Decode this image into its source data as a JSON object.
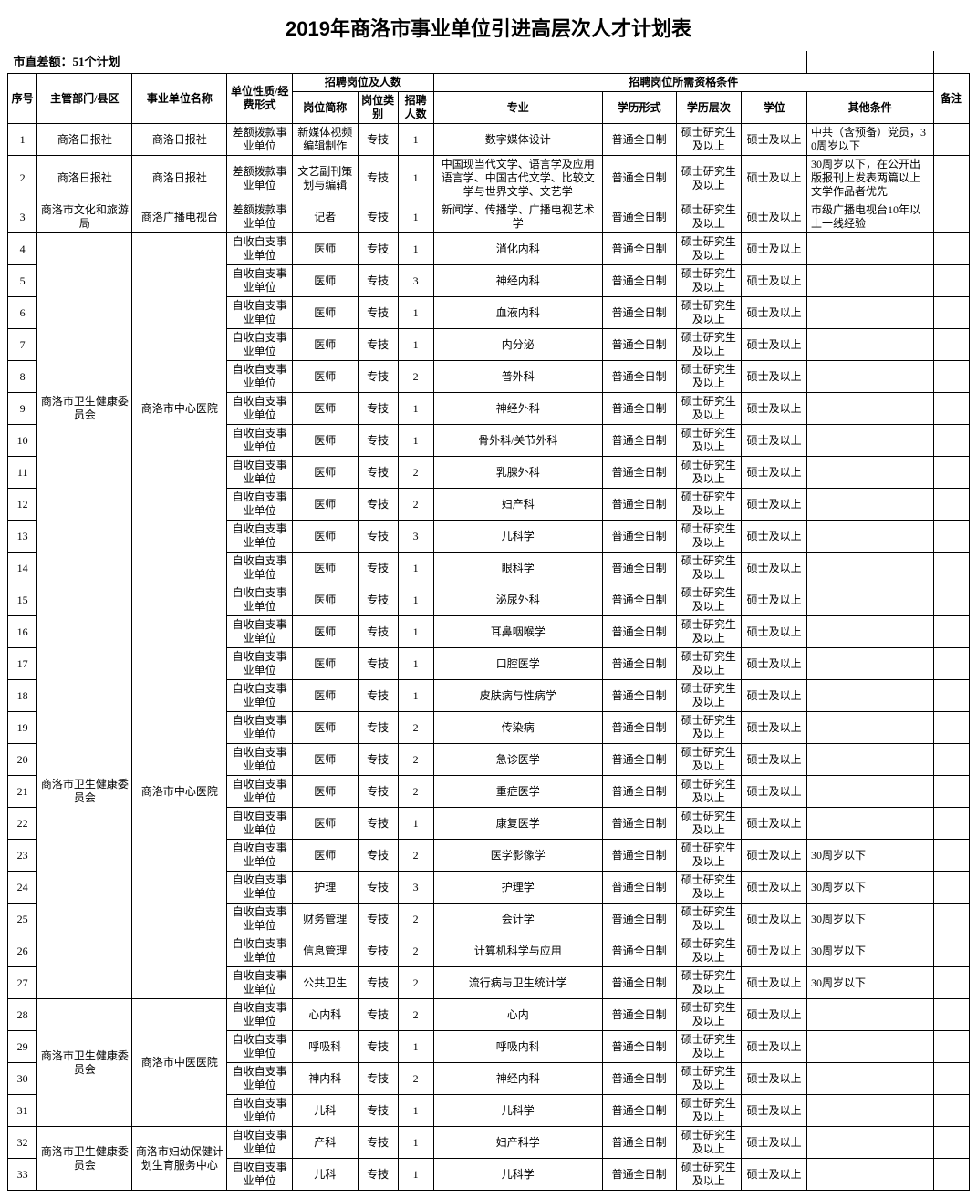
{
  "title": "2019年商洛市事业单位引进高层次人才计划表",
  "subtitle": "市直差额：51个计划",
  "headers": {
    "seq": "序号",
    "dept": "主管部门/县区",
    "unit": "事业单位名称",
    "nature": "单位性质/经费形式",
    "positions_group": "招聘岗位及人数",
    "pos_name": "岗位简称",
    "pos_cat": "岗位类别",
    "pos_num": "招聘人数",
    "qual_group": "招聘岗位所需资格条件",
    "major": "专业",
    "edu_form": "学历形式",
    "edu_level": "学历层次",
    "degree": "学位",
    "other": "其他条件",
    "note": "备注"
  },
  "common": {
    "nature_cha": "差额拨款事业单位",
    "nature_zi": "自收自支事业单位",
    "cat": "专技",
    "edu_form": "普通全日制",
    "edu_level": "硕士研究生及以上",
    "degree": "硕士及以上"
  },
  "groups": [
    {
      "dept": "商洛日报社",
      "unit": "商洛日报社",
      "rows": [
        {
          "seq": 1,
          "nature_key": "nature_cha",
          "pos": "新媒体视频编辑制作",
          "num": 1,
          "major": "数字媒体设计",
          "other": "中共（含预备）党员，30周岁以下"
        }
      ]
    },
    {
      "dept": "商洛日报社",
      "unit": "商洛日报社",
      "rows": [
        {
          "seq": 2,
          "nature_key": "nature_cha",
          "pos": "文艺副刊策划与编辑",
          "num": 1,
          "major": "中国现当代文学、语言学及应用语言学、中国古代文学、比较文学与世界文学、文艺学",
          "other": "30周岁以下，在公开出版报刊上发表两篇以上文学作品者优先"
        }
      ]
    },
    {
      "dept": "商洛市文化和旅游局",
      "unit": "商洛广播电视台",
      "rows": [
        {
          "seq": 3,
          "nature_key": "nature_cha",
          "pos": "记者",
          "num": 1,
          "major": "新闻学、传播学、广播电视艺术学",
          "other": "市级广播电视台10年以上一线经验"
        }
      ]
    },
    {
      "dept": "商洛市卫生健康委员会",
      "unit": "商洛市中心医院",
      "rows": [
        {
          "seq": 4,
          "nature_key": "nature_zi",
          "pos": "医师",
          "num": 1,
          "major": "消化内科",
          "other": ""
        },
        {
          "seq": 5,
          "nature_key": "nature_zi",
          "pos": "医师",
          "num": 3,
          "major": "神经内科",
          "other": ""
        },
        {
          "seq": 6,
          "nature_key": "nature_zi",
          "pos": "医师",
          "num": 1,
          "major": "血液内科",
          "other": ""
        },
        {
          "seq": 7,
          "nature_key": "nature_zi",
          "pos": "医师",
          "num": 1,
          "major": "内分泌",
          "other": ""
        },
        {
          "seq": 8,
          "nature_key": "nature_zi",
          "pos": "医师",
          "num": 2,
          "major": "普外科",
          "other": ""
        },
        {
          "seq": 9,
          "nature_key": "nature_zi",
          "pos": "医师",
          "num": 1,
          "major": "神经外科",
          "other": ""
        },
        {
          "seq": 10,
          "nature_key": "nature_zi",
          "pos": "医师",
          "num": 1,
          "major": "骨外科/关节外科",
          "other": ""
        },
        {
          "seq": 11,
          "nature_key": "nature_zi",
          "pos": "医师",
          "num": 2,
          "major": "乳腺外科",
          "other": ""
        },
        {
          "seq": 12,
          "nature_key": "nature_zi",
          "pos": "医师",
          "num": 2,
          "major": "妇产科",
          "other": ""
        },
        {
          "seq": 13,
          "nature_key": "nature_zi",
          "pos": "医师",
          "num": 3,
          "major": "儿科学",
          "other": ""
        },
        {
          "seq": 14,
          "nature_key": "nature_zi",
          "pos": "医师",
          "num": 1,
          "major": "眼科学",
          "other": ""
        }
      ]
    },
    {
      "dept": "商洛市卫生健康委员会",
      "unit": "商洛市中心医院",
      "rows": [
        {
          "seq": 15,
          "nature_key": "nature_zi",
          "pos": "医师",
          "num": 1,
          "major": "泌尿外科",
          "other": ""
        },
        {
          "seq": 16,
          "nature_key": "nature_zi",
          "pos": "医师",
          "num": 1,
          "major": "耳鼻咽喉学",
          "other": ""
        },
        {
          "seq": 17,
          "nature_key": "nature_zi",
          "pos": "医师",
          "num": 1,
          "major": "口腔医学",
          "other": ""
        },
        {
          "seq": 18,
          "nature_key": "nature_zi",
          "pos": "医师",
          "num": 1,
          "major": "皮肤病与性病学",
          "other": ""
        },
        {
          "seq": 19,
          "nature_key": "nature_zi",
          "pos": "医师",
          "num": 2,
          "major": "传染病",
          "other": ""
        },
        {
          "seq": 20,
          "nature_key": "nature_zi",
          "pos": "医师",
          "num": 2,
          "major": "急诊医学",
          "other": ""
        },
        {
          "seq": 21,
          "nature_key": "nature_zi",
          "pos": "医师",
          "num": 2,
          "major": "重症医学",
          "other": ""
        },
        {
          "seq": 22,
          "nature_key": "nature_zi",
          "pos": "医师",
          "num": 1,
          "major": "康复医学",
          "other": ""
        },
        {
          "seq": 23,
          "nature_key": "nature_zi",
          "pos": "医师",
          "num": 2,
          "major": "医学影像学",
          "other": "30周岁以下"
        },
        {
          "seq": 24,
          "nature_key": "nature_zi",
          "pos": "护理",
          "num": 3,
          "major": "护理学",
          "other": "30周岁以下"
        },
        {
          "seq": 25,
          "nature_key": "nature_zi",
          "pos": "财务管理",
          "num": 2,
          "major": "会计学",
          "other": "30周岁以下"
        },
        {
          "seq": 26,
          "nature_key": "nature_zi",
          "pos": "信息管理",
          "num": 2,
          "major": "计算机科学与应用",
          "other": "30周岁以下"
        },
        {
          "seq": 27,
          "nature_key": "nature_zi",
          "pos": "公共卫生",
          "num": 2,
          "major": "流行病与卫生统计学",
          "other": "30周岁以下"
        }
      ]
    },
    {
      "dept": "商洛市卫生健康委员会",
      "unit": "商洛市中医医院",
      "rows": [
        {
          "seq": 28,
          "nature_key": "nature_zi",
          "pos": "心内科",
          "num": 2,
          "major": "心内",
          "other": ""
        },
        {
          "seq": 29,
          "nature_key": "nature_zi",
          "pos": "呼吸科",
          "num": 1,
          "major": "呼吸内科",
          "other": ""
        },
        {
          "seq": 30,
          "nature_key": "nature_zi",
          "pos": "神内科",
          "num": 2,
          "major": "神经内科",
          "other": ""
        },
        {
          "seq": 31,
          "nature_key": "nature_zi",
          "pos": "儿科",
          "num": 1,
          "major": "儿科学",
          "other": ""
        }
      ]
    },
    {
      "dept": "商洛市卫生健康委员会",
      "unit": "商洛市妇幼保健计划生育服务中心",
      "rows": [
        {
          "seq": 32,
          "nature_key": "nature_zi",
          "pos": "产科",
          "num": 1,
          "major": "妇产科学",
          "other": ""
        },
        {
          "seq": 33,
          "nature_key": "nature_zi",
          "pos": "儿科",
          "num": 1,
          "major": "儿科学",
          "other": ""
        }
      ]
    }
  ]
}
